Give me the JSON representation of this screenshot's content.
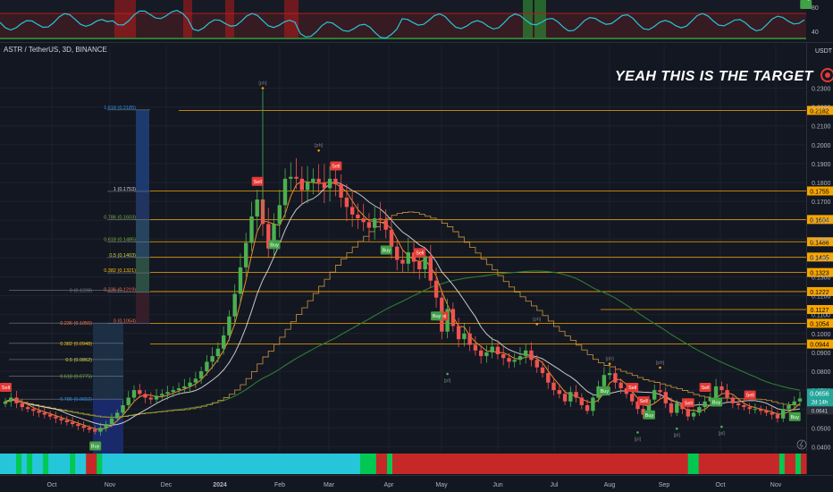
{
  "header": {
    "symbol_title": "ASTR / TetherUS, 3D, BINANCE",
    "price_unit": "USDT"
  },
  "annotation": {
    "text": "YEAH THIS IS THE TARGET",
    "icon": "target-icon"
  },
  "colors": {
    "background": "#131722",
    "up_candle": "#4caf50",
    "down_candle": "#ef5350",
    "level_line": "#f7a600",
    "oscillator_line": "#26c6da",
    "buy_label": "#43a047",
    "sell_label": "#e53935",
    "current_price_label": "#26a69a"
  },
  "chart_data": {
    "type": "candlestick",
    "title": "ASTR / TetherUS, 3D, BINANCE",
    "y_unit": "USDT",
    "ylim": [
      0.036,
      0.238
    ],
    "x_tick_labels": [
      "Oct",
      "Nov",
      "Dec",
      "2024",
      "Feb",
      "Mar",
      "Apr",
      "May",
      "Jun",
      "Jul",
      "Aug",
      "Sep",
      "Oct",
      "Nov"
    ],
    "y_tick_labels": [
      0.23,
      0.22,
      0.21,
      0.2,
      0.19,
      0.18,
      0.17,
      0.16,
      0.15,
      0.14,
      0.13,
      0.12,
      0.11,
      0.1,
      0.09,
      0.08,
      0.07,
      0.06,
      0.05,
      0.04
    ],
    "y_tick_text": [
      "0.2300",
      "0.2200",
      "0.2100",
      "0.2000",
      "0.1900",
      "0.1800",
      "0.1700",
      "0.1600",
      "0.1500",
      "0.1400",
      "0.1300",
      "0.1200",
      "0.1100",
      "0.1000",
      "0.0900",
      "0.0800",
      "0.0700",
      "0.0600",
      "0.0500",
      "0.0400"
    ],
    "horizontal_levels": [
      {
        "label": "0.2182",
        "value": 0.2182
      },
      {
        "label": "0.1755",
        "value": 0.1755
      },
      {
        "label": "0.1604",
        "value": 0.1604
      },
      {
        "label": "0.1486",
        "value": 0.1486
      },
      {
        "label": "0.1405",
        "value": 0.1405
      },
      {
        "label": "0.1323",
        "value": 0.1323
      },
      {
        "label": "0.1222",
        "value": 0.1222
      },
      {
        "label": "0.1127",
        "value": 0.1127
      },
      {
        "label": "0.1054",
        "value": 0.1054
      },
      {
        "label": "0.0944",
        "value": 0.0944
      }
    ],
    "fib_upper": [
      {
        "label": "1.618 (0.2185)",
        "value": 0.2185
      },
      {
        "label": "1 (0.1753)",
        "value": 0.1753
      },
      {
        "label": "0.786 (0.1603)",
        "value": 0.1603
      },
      {
        "label": "0.618 (0.1485)",
        "value": 0.1485
      },
      {
        "label": "0.5 (0.1403)",
        "value": 0.1403
      },
      {
        "label": "0.382 (0.1321)",
        "value": 0.1321
      },
      {
        "label": "0.236 (0.1219)",
        "value": 0.1219
      },
      {
        "label": "0 (0.1054)",
        "value": 0.1054
      }
    ],
    "fib_lower": [
      {
        "label": "0 (0.1228)",
        "value": 0.1228
      },
      {
        "label": "0.236 (0.1055)",
        "value": 0.1055
      },
      {
        "label": "0.382 (0.0948)",
        "value": 0.0948
      },
      {
        "label": "0.5 (0.0862)",
        "value": 0.0862
      },
      {
        "label": "0.618 (0.0775)",
        "value": 0.0775
      },
      {
        "label": "0.786 (0.0652)",
        "value": 0.0652
      }
    ],
    "current_price": {
      "value": 0.0656,
      "label": "0.0656",
      "countdown": "2d 14h"
    },
    "current_price_secondary": {
      "label": "0.0641"
    },
    "closes": [
      0.064,
      0.066,
      0.063,
      0.061,
      0.06,
      0.059,
      0.058,
      0.057,
      0.056,
      0.055,
      0.054,
      0.053,
      0.052,
      0.051,
      0.05,
      0.049,
      0.048,
      0.05,
      0.052,
      0.055,
      0.058,
      0.062,
      0.066,
      0.07,
      0.068,
      0.066,
      0.065,
      0.067,
      0.068,
      0.069,
      0.07,
      0.071,
      0.072,
      0.074,
      0.076,
      0.08,
      0.085,
      0.088,
      0.092,
      0.099,
      0.109,
      0.121,
      0.135,
      0.148,
      0.162,
      0.171,
      0.158,
      0.145,
      0.158,
      0.168,
      0.182,
      0.183,
      0.182,
      0.176,
      0.18,
      0.182,
      0.18,
      0.177,
      0.182,
      0.179,
      0.172,
      0.167,
      0.163,
      0.161,
      0.159,
      0.156,
      0.161,
      0.16,
      0.155,
      0.146,
      0.139,
      0.137,
      0.143,
      0.138,
      0.134,
      0.141,
      0.128,
      0.119,
      0.101,
      0.113,
      0.104,
      0.097,
      0.1,
      0.094,
      0.091,
      0.088,
      0.09,
      0.093,
      0.089,
      0.087,
      0.085,
      0.086,
      0.088,
      0.091,
      0.086,
      0.082,
      0.079,
      0.074,
      0.07,
      0.068,
      0.064,
      0.069,
      0.066,
      0.062,
      0.059,
      0.066,
      0.072,
      0.078,
      0.079,
      0.074,
      0.071,
      0.068,
      0.064,
      0.06,
      0.057,
      0.065,
      0.07,
      0.069,
      0.063,
      0.058,
      0.063,
      0.06,
      0.056,
      0.058,
      0.061,
      0.064,
      0.066,
      0.072,
      0.07,
      0.066,
      0.063,
      0.062,
      0.061,
      0.06,
      0.06,
      0.059,
      0.058,
      0.057,
      0.055,
      0.06,
      0.062,
      0.064,
      0.0656
    ],
    "x_range": "Sep 2023 - Nov 2024",
    "oscillator": {
      "axis_ticks": [
        80,
        40
      ]
    },
    "signals": {
      "buy_label": "Buy",
      "sell_label": "Sell",
      "pivot_high_label": "[ph]",
      "pivot_low_label": "[pl]",
      "buy_count": 9,
      "sell_count": 10
    },
    "grid": true
  }
}
